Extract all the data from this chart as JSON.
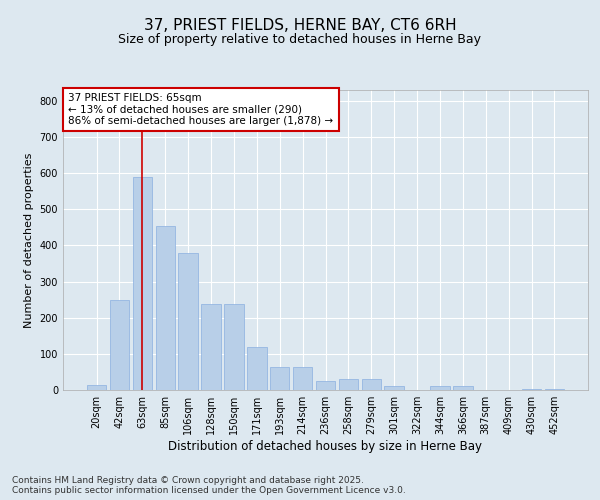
{
  "title1": "37, PRIEST FIELDS, HERNE BAY, CT6 6RH",
  "title2": "Size of property relative to detached houses in Herne Bay",
  "xlabel": "Distribution of detached houses by size in Herne Bay",
  "ylabel": "Number of detached properties",
  "categories": [
    "20sqm",
    "42sqm",
    "63sqm",
    "85sqm",
    "106sqm",
    "128sqm",
    "150sqm",
    "171sqm",
    "193sqm",
    "214sqm",
    "236sqm",
    "258sqm",
    "279sqm",
    "301sqm",
    "322sqm",
    "344sqm",
    "366sqm",
    "387sqm",
    "409sqm",
    "430sqm",
    "452sqm"
  ],
  "values": [
    15,
    248,
    590,
    455,
    378,
    238,
    238,
    118,
    65,
    65,
    25,
    30,
    30,
    10,
    0,
    10,
    10,
    0,
    0,
    3,
    2
  ],
  "bar_color": "#b8cfe8",
  "bar_edge_color": "#8aafe0",
  "vline_x_index": 2,
  "vline_color": "#cc0000",
  "annotation_text": "37 PRIEST FIELDS: 65sqm\n← 13% of detached houses are smaller (290)\n86% of semi-detached houses are larger (1,878) →",
  "annotation_box_facecolor": "#ffffff",
  "annotation_box_edgecolor": "#cc0000",
  "bg_color": "#dde8f0",
  "plot_bg_color": "#dde8f0",
  "grid_color": "#ffffff",
  "ylim": [
    0,
    830
  ],
  "yticks": [
    0,
    100,
    200,
    300,
    400,
    500,
    600,
    700,
    800
  ],
  "footnote": "Contains HM Land Registry data © Crown copyright and database right 2025.\nContains public sector information licensed under the Open Government Licence v3.0.",
  "title1_fontsize": 11,
  "title2_fontsize": 9,
  "xlabel_fontsize": 8.5,
  "ylabel_fontsize": 8,
  "tick_fontsize": 7,
  "annotation_fontsize": 7.5,
  "footnote_fontsize": 6.5
}
